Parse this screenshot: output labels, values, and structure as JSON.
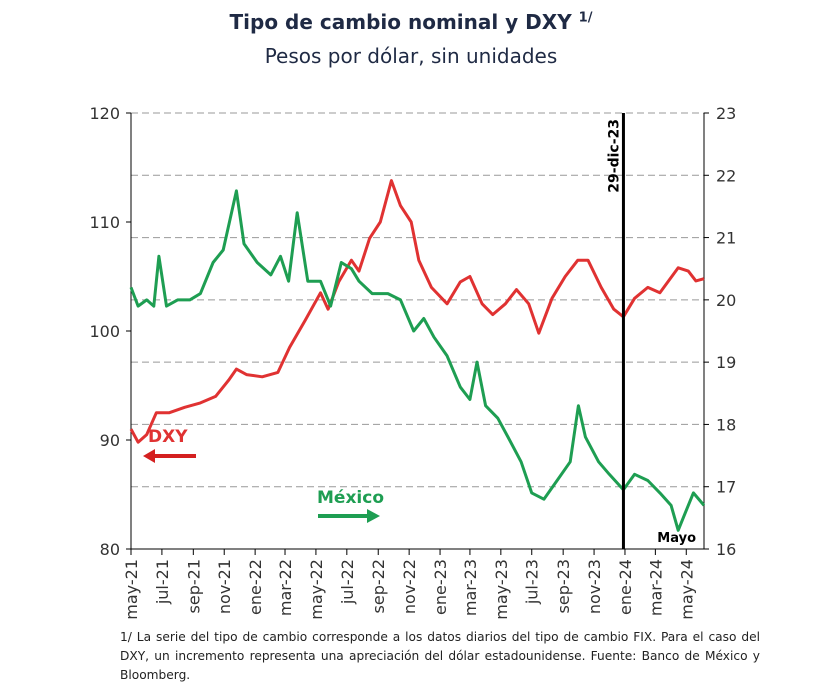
{
  "title": "Tipo de cambio nominal y DXY",
  "title_note": "1/",
  "subtitle": "Pesos por dólar, sin unidades",
  "footnote": "1/ La serie del tipo de cambio corresponde a los datos diarios del tipo de cambio FIX. Para el caso del DXY, un incremento representa una apreciación del dólar estadounidense. Fuente: Banco de México y Bloomberg.",
  "chart_data": {
    "type": "line",
    "title": "Tipo de cambio nominal y DXY 1/",
    "subtitle": "Pesos por dólar, sin unidades",
    "x_range": [
      "2021-05-01",
      "2024-06-05"
    ],
    "x_tick_labels": [
      "may-21",
      "jul-21",
      "sep-21",
      "nov-21",
      "ene-22",
      "mar-22",
      "may-22",
      "jul-22",
      "sep-22",
      "nov-22",
      "ene-23",
      "mar-23",
      "may-23",
      "jul-23",
      "sep-23",
      "nov-23",
      "ene-24",
      "mar-24",
      "may-24"
    ],
    "x_tick_dates": [
      "2021-05-01",
      "2021-07-01",
      "2021-09-01",
      "2021-11-01",
      "2022-01-01",
      "2022-03-01",
      "2022-05-01",
      "2022-07-01",
      "2022-09-01",
      "2022-11-01",
      "2023-01-01",
      "2023-03-01",
      "2023-05-01",
      "2023-07-01",
      "2023-09-01",
      "2023-11-01",
      "2024-01-01",
      "2024-03-01",
      "2024-05-01"
    ],
    "y_left": {
      "range": [
        80,
        120
      ],
      "ticks": [
        80,
        90,
        100,
        110,
        120
      ]
    },
    "y_right": {
      "range": [
        16,
        23
      ],
      "ticks": [
        16,
        17,
        18,
        19,
        20,
        21,
        22,
        23
      ]
    },
    "grid": "horizontal dashed at right-axis ticks",
    "annotations": {
      "vline_date": "2023-12-29",
      "vline_label": "29-dic-23",
      "corner_label": "Mayo"
    },
    "series": [
      {
        "name": "DXY",
        "axis": "left",
        "color": "#e03232",
        "arrow": "left",
        "x": [
          "2021-05-01",
          "2021-05-15",
          "2021-06-01",
          "2021-06-20",
          "2021-07-15",
          "2021-08-15",
          "2021-09-15",
          "2021-10-15",
          "2021-11-10",
          "2021-11-25",
          "2021-12-15",
          "2022-01-15",
          "2022-02-15",
          "2022-03-10",
          "2022-04-10",
          "2022-05-10",
          "2022-05-25",
          "2022-06-15",
          "2022-07-10",
          "2022-07-25",
          "2022-08-15",
          "2022-09-05",
          "2022-09-27",
          "2022-10-15",
          "2022-11-05",
          "2022-11-20",
          "2022-12-15",
          "2023-01-15",
          "2023-02-10",
          "2023-03-01",
          "2023-03-25",
          "2023-04-15",
          "2023-05-10",
          "2023-06-01",
          "2023-06-25",
          "2023-07-15",
          "2023-08-10",
          "2023-09-05",
          "2023-09-30",
          "2023-10-20",
          "2023-11-15",
          "2023-12-10",
          "2023-12-29",
          "2024-01-20",
          "2024-02-15",
          "2024-03-10",
          "2024-04-15",
          "2024-05-05",
          "2024-05-20",
          "2024-06-05"
        ],
        "y": [
          91.0,
          89.8,
          90.5,
          92.5,
          92.5,
          93.0,
          93.4,
          94.0,
          95.5,
          96.5,
          96.0,
          95.8,
          96.2,
          98.5,
          101.0,
          103.5,
          102.0,
          104.5,
          106.5,
          105.5,
          108.5,
          110.0,
          113.8,
          111.5,
          110.0,
          106.5,
          104.0,
          102.5,
          104.5,
          105.0,
          102.5,
          101.5,
          102.5,
          103.8,
          102.5,
          99.8,
          103.0,
          105.0,
          106.5,
          106.5,
          104.0,
          102.0,
          101.3,
          103.0,
          104.0,
          103.5,
          105.8,
          105.5,
          104.6,
          104.8
        ]
      },
      {
        "name": "México",
        "axis": "right",
        "color": "#1e9e52",
        "arrow": "right",
        "x": [
          "2021-05-01",
          "2021-05-15",
          "2021-06-01",
          "2021-06-15",
          "2021-06-25",
          "2021-07-10",
          "2021-08-01",
          "2021-08-25",
          "2021-09-15",
          "2021-10-10",
          "2021-10-30",
          "2021-11-25",
          "2021-12-10",
          "2022-01-05",
          "2022-02-01",
          "2022-02-20",
          "2022-03-08",
          "2022-03-25",
          "2022-04-15",
          "2022-05-10",
          "2022-05-30",
          "2022-06-20",
          "2022-07-10",
          "2022-07-25",
          "2022-08-20",
          "2022-09-20",
          "2022-10-15",
          "2022-11-10",
          "2022-11-30",
          "2022-12-20",
          "2023-01-15",
          "2023-02-10",
          "2023-03-01",
          "2023-03-15",
          "2023-04-01",
          "2023-04-25",
          "2023-05-15",
          "2023-06-10",
          "2023-07-01",
          "2023-07-25",
          "2023-08-20",
          "2023-09-15",
          "2023-10-01",
          "2023-10-15",
          "2023-11-10",
          "2023-12-01",
          "2023-12-29",
          "2024-01-20",
          "2024-02-15",
          "2024-03-10",
          "2024-04-01",
          "2024-04-15",
          "2024-04-25",
          "2024-05-15",
          "2024-06-05"
        ],
        "y": [
          20.2,
          19.9,
          20.0,
          19.9,
          20.7,
          19.9,
          20.0,
          20.0,
          20.1,
          20.6,
          20.8,
          21.75,
          20.9,
          20.6,
          20.4,
          20.7,
          20.3,
          21.4,
          20.3,
          20.3,
          19.9,
          20.6,
          20.5,
          20.3,
          20.1,
          20.1,
          20.0,
          19.5,
          19.7,
          19.4,
          19.1,
          18.6,
          18.4,
          19.0,
          18.3,
          18.1,
          17.8,
          17.4,
          16.9,
          16.8,
          17.1,
          17.4,
          18.3,
          17.8,
          17.4,
          17.2,
          16.95,
          17.2,
          17.1,
          16.9,
          16.7,
          16.3,
          16.5,
          16.9,
          16.7
        ]
      }
    ]
  }
}
